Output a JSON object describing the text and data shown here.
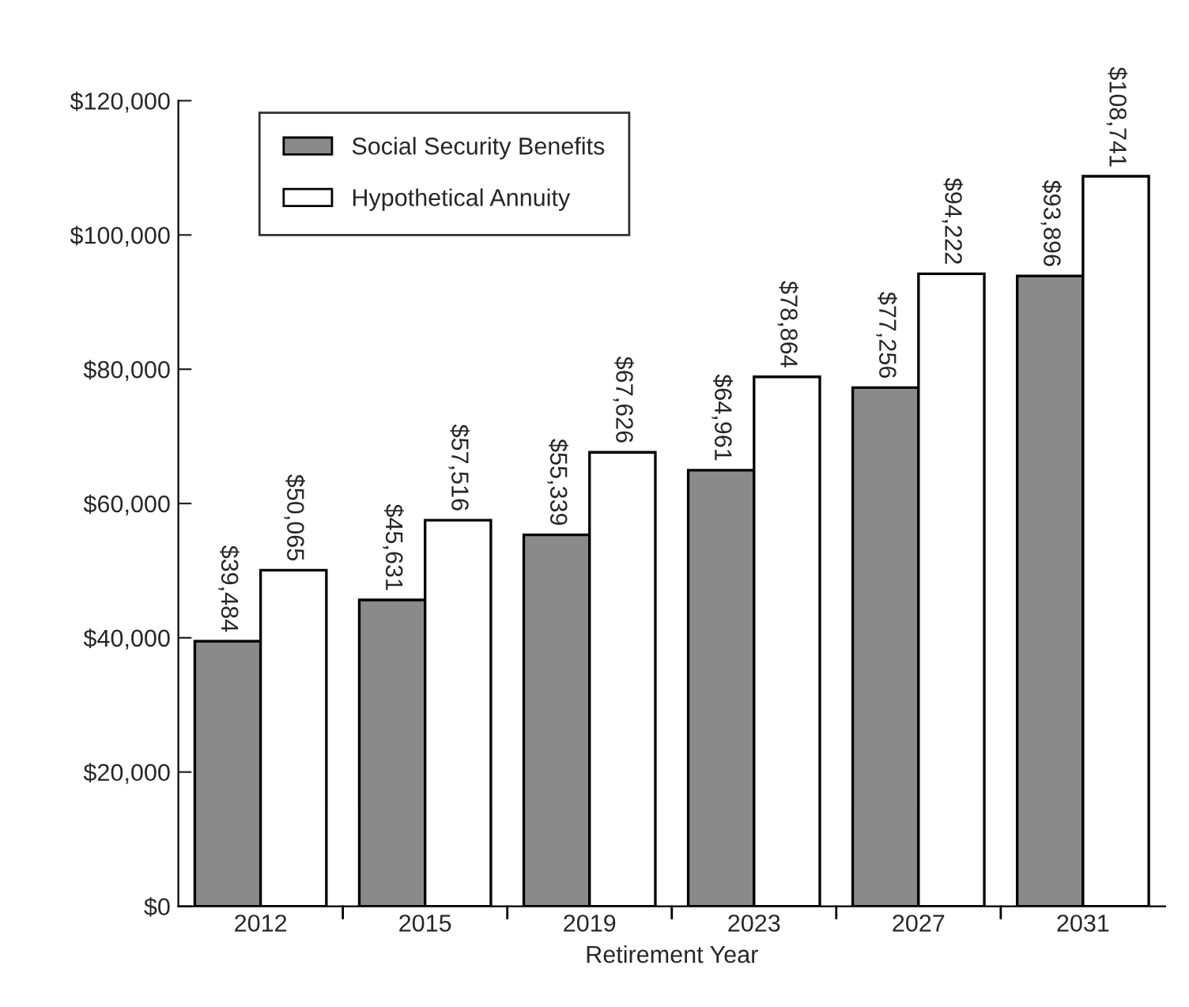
{
  "chart_data": {
    "type": "bar",
    "xlabel": "Retirement Year",
    "categories": [
      "2012",
      "2015",
      "2019",
      "2023",
      "2027",
      "2031"
    ],
    "series": [
      {
        "name": "Social Security Benefits",
        "color": "#8a8a8a",
        "values": [
          39484,
          45631,
          55339,
          64961,
          77256,
          93896
        ],
        "value_labels": [
          "$39,484",
          "$45,631",
          "$55,339",
          "$64,961",
          "$77,256",
          "$93,896"
        ]
      },
      {
        "name": "Hypothetical Annuity",
        "color": "#ffffff",
        "values": [
          50065,
          57516,
          67626,
          78864,
          94222,
          108741
        ],
        "value_labels": [
          "$50,065",
          "$57,516",
          "$67,626",
          "$78,864",
          "$94,222",
          "$108,741"
        ]
      }
    ],
    "ylim": [
      0,
      120000
    ],
    "yticks": [
      {
        "value": 0,
        "label": "$0"
      },
      {
        "value": 20000,
        "label": "$20,000"
      },
      {
        "value": 40000,
        "label": "$40,000"
      },
      {
        "value": 60000,
        "label": "$60,000"
      },
      {
        "value": 80000,
        "label": "$80,000"
      },
      {
        "value": 100000,
        "label": "$100,000"
      },
      {
        "value": 120000,
        "label": "$120,000"
      }
    ],
    "legend": "top left",
    "grid": false
  }
}
